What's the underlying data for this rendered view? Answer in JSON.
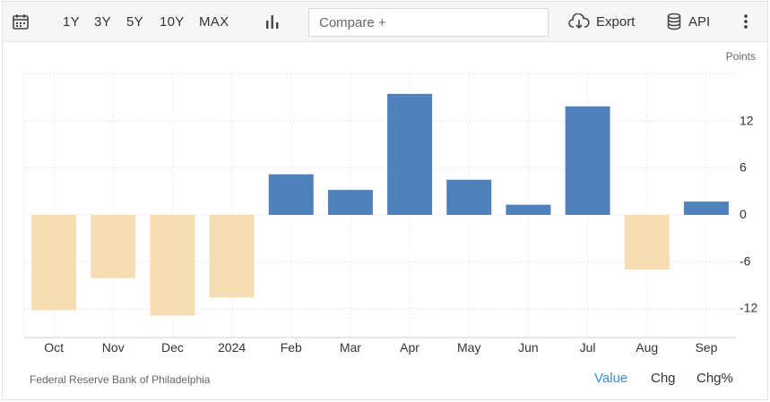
{
  "toolbar": {
    "calendar_icon": "calendar-icon",
    "ranges": [
      "1Y",
      "3Y",
      "5Y",
      "10Y",
      "MAX"
    ],
    "chart_type_icon": "bar-chart-icon",
    "compare_placeholder": "Compare +",
    "export_label": "Export",
    "export_icon": "cloud-download-icon",
    "api_label": "API",
    "api_icon": "database-icon",
    "more_icon": "vertical-dots-icon"
  },
  "footer": {
    "source": "Federal Reserve Bank of Philadelphia",
    "value_tabs": [
      "Value",
      "Chg",
      "Chg%"
    ],
    "active_tab": "Value"
  },
  "colors": {
    "positive": "#4f81bd",
    "negative": "#f5deb3",
    "active_tab": "#3a8fd6"
  },
  "chart_data": {
    "type": "bar",
    "ylabel": "Points",
    "categories": [
      "Oct",
      "Nov",
      "Dec",
      "2024",
      "Feb",
      "Mar",
      "Apr",
      "May",
      "Jun",
      "Jul",
      "Aug",
      "Sep"
    ],
    "values": [
      -12.2,
      -8.1,
      -12.9,
      -10.6,
      5.2,
      3.2,
      15.5,
      4.5,
      1.3,
      13.9,
      -7.0,
      1.7
    ],
    "y_ticks": [
      12,
      6,
      0,
      -6,
      -12
    ],
    "ylim": [
      -16,
      18
    ],
    "grid": true
  }
}
